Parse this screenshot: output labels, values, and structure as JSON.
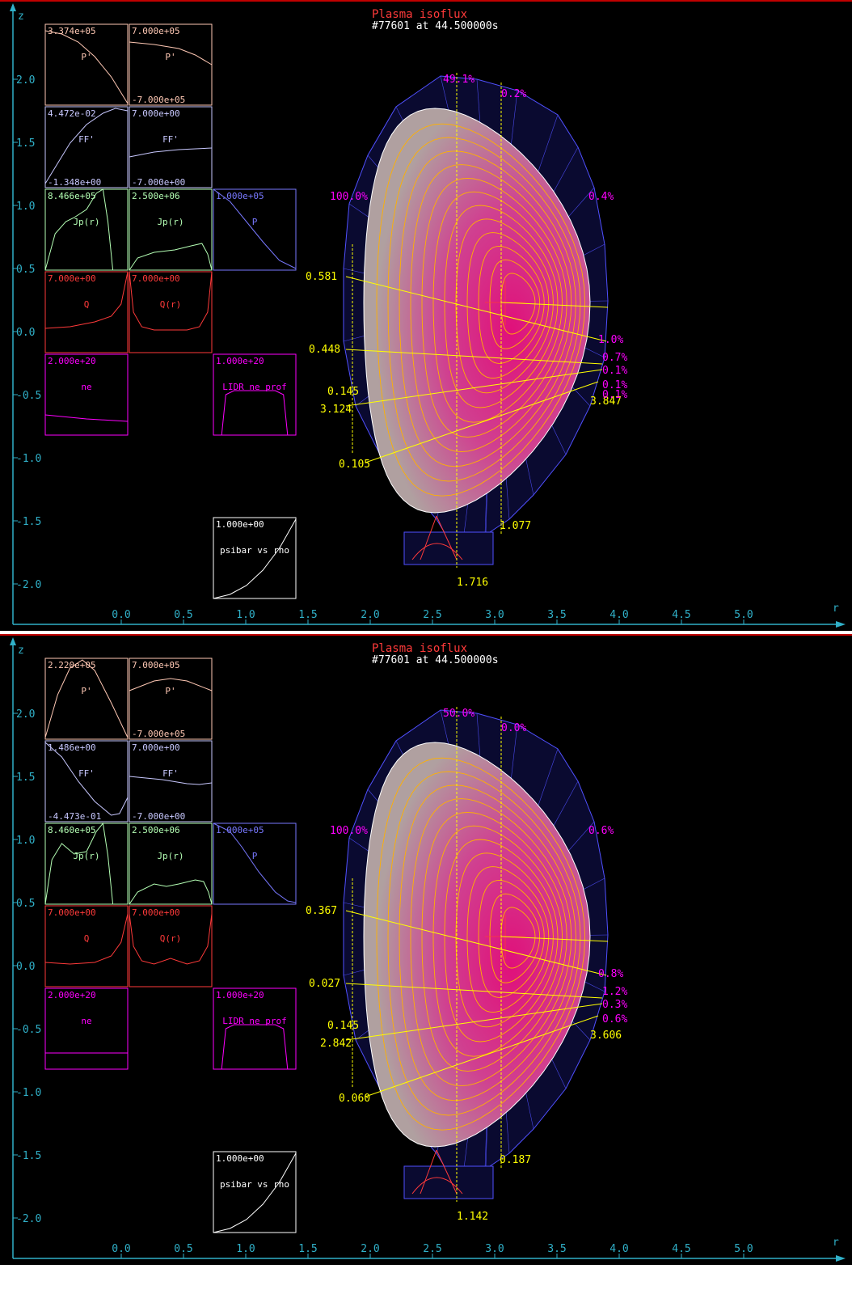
{
  "colors": {
    "axis": "#30b0c8",
    "title": "#ff3a3a",
    "annot": "#ffff00",
    "pct": "#ff00ff",
    "mesh": "#5050ff",
    "plasma_edge": "#b0a0a0",
    "plasma_core": "#e0107a",
    "flux": "#ffb000",
    "p_prime": "#ffc8b4",
    "ffp": "#c8c8ff",
    "jp": "#b4ffb4",
    "p": "#7878ff",
    "q": "#ff3a3a",
    "ne": "#ff00ff",
    "psi": "#ffffff"
  },
  "chart_data": [
    {
      "type": "line",
      "title": "Plasma isoflux",
      "subtitle": "#77601 at 44.500000s",
      "xlabel": "r",
      "ylabel": "z",
      "x_ticks": [
        "0.0",
        "0.5",
        "1.0",
        "1.5",
        "2.0",
        "2.5",
        "3.0",
        "3.5",
        "4.0",
        "4.5",
        "5.0"
      ],
      "y_ticks": [
        "2.0",
        "1.5",
        "1.0",
        "0.5",
        "0.0",
        "-0.5",
        "-1.0",
        "-1.5",
        "-2.0"
      ],
      "xlim": [
        -0.75,
        5.6
      ],
      "ylim": [
        -2.3,
        2.4
      ],
      "los_left": [
        "0.581",
        "0.448",
        "0.145",
        "3.124",
        "0.105"
      ],
      "los_right": [
        "3.847"
      ],
      "los_bottom": [
        "1.077",
        "1.716"
      ],
      "pct_labels": [
        "49.1%",
        "0.2%",
        "100.0%",
        "0.4%",
        "1.0%",
        "0.7%",
        "0.1%",
        "0.1%",
        "0.1%"
      ],
      "insets": [
        {
          "name": "P'",
          "max": "3.374e+05",
          "min": "",
          "color_key": "p_prime",
          "curve": [
            [
              0,
              0.92
            ],
            [
              0.2,
              0.88
            ],
            [
              0.4,
              0.78
            ],
            [
              0.6,
              0.6
            ],
            [
              0.8,
              0.35
            ],
            [
              1,
              0.02
            ]
          ]
        },
        {
          "name": "P'",
          "max": "7.000e+05",
          "min": "-7.000e+05",
          "color_key": "p_prime",
          "curve": [
            [
              0,
              0.78
            ],
            [
              0.3,
              0.75
            ],
            [
              0.6,
              0.7
            ],
            [
              0.8,
              0.62
            ],
            [
              1,
              0.5
            ]
          ]
        },
        {
          "name": "FF'",
          "max": "4.472e-02",
          "min": "-1.348e+00",
          "color_key": "ffp",
          "curve": [
            [
              0,
              0.05
            ],
            [
              0.15,
              0.3
            ],
            [
              0.3,
              0.55
            ],
            [
              0.5,
              0.78
            ],
            [
              0.7,
              0.92
            ],
            [
              0.85,
              0.98
            ],
            [
              1,
              0.95
            ]
          ]
        },
        {
          "name": "FF'",
          "max": "7.000e+00",
          "min": "-7.000e+00",
          "color_key": "ffp",
          "curve": [
            [
              0,
              0.38
            ],
            [
              0.3,
              0.44
            ],
            [
              0.6,
              0.47
            ],
            [
              1,
              0.49
            ]
          ]
        },
        {
          "name": "Jp(r)",
          "max": "8.466e+05",
          "min": "",
          "color_key": "jp",
          "curve": [
            [
              0,
              0
            ],
            [
              0.12,
              0.45
            ],
            [
              0.25,
              0.6
            ],
            [
              0.35,
              0.65
            ],
            [
              0.5,
              0.75
            ],
            [
              0.62,
              0.95
            ],
            [
              0.7,
              1
            ],
            [
              0.76,
              0.6
            ],
            [
              0.82,
              0
            ],
            [
              1,
              0
            ]
          ]
        },
        {
          "name": "Jp(r)",
          "max": "2.500e+06",
          "min": "",
          "color_key": "jp",
          "curve": [
            [
              0,
              0
            ],
            [
              0.1,
              0.15
            ],
            [
              0.3,
              0.22
            ],
            [
              0.55,
              0.25
            ],
            [
              0.75,
              0.3
            ],
            [
              0.88,
              0.33
            ],
            [
              0.95,
              0.2
            ],
            [
              1,
              0
            ]
          ]
        },
        {
          "name": "P",
          "max": "1.000e+05",
          "min": "",
          "color_key": "p",
          "curve": [
            [
              0,
              1
            ],
            [
              0.2,
              0.85
            ],
            [
              0.4,
              0.6
            ],
            [
              0.6,
              0.35
            ],
            [
              0.8,
              0.12
            ],
            [
              1,
              0.02
            ]
          ]
        },
        {
          "name": "Q",
          "max": "7.000e+00",
          "min": "",
          "color_key": "q",
          "curve": [
            [
              0,
              0.3
            ],
            [
              0.3,
              0.32
            ],
            [
              0.6,
              0.38
            ],
            [
              0.8,
              0.45
            ],
            [
              0.92,
              0.6
            ],
            [
              1,
              1
            ]
          ]
        },
        {
          "name": "Q(r)",
          "max": "7.000e+00",
          "min": "",
          "color_key": "q",
          "curve": [
            [
              0,
              1
            ],
            [
              0.05,
              0.5
            ],
            [
              0.15,
              0.32
            ],
            [
              0.3,
              0.28
            ],
            [
              0.7,
              0.28
            ],
            [
              0.85,
              0.32
            ],
            [
              0.95,
              0.5
            ],
            [
              1,
              1
            ]
          ]
        },
        {
          "name": "ne",
          "max": "2.000e+20",
          "min": "",
          "color_key": "ne",
          "curve": [
            [
              0,
              0.25
            ],
            [
              0.5,
              0.2
            ],
            [
              1,
              0.17
            ]
          ]
        },
        {
          "name": "LIDR ne prof",
          "max": "1.000e+20",
          "min": "",
          "color_key": "ne",
          "curve": [
            [
              0.1,
              0
            ],
            [
              0.15,
              0.5
            ],
            [
              0.25,
              0.55
            ],
            [
              0.75,
              0.55
            ],
            [
              0.85,
              0.5
            ],
            [
              0.9,
              0
            ]
          ]
        },
        {
          "name": "psibar vs rho",
          "max": "1.000e+00",
          "min": "",
          "color_key": "psi",
          "curve": [
            [
              0,
              0
            ],
            [
              0.2,
              0.05
            ],
            [
              0.4,
              0.16
            ],
            [
              0.6,
              0.35
            ],
            [
              0.8,
              0.62
            ],
            [
              1,
              0.98
            ]
          ]
        }
      ]
    },
    {
      "type": "line",
      "title": "Plasma isoflux",
      "subtitle": "#77601 at 44.500000s",
      "xlabel": "r",
      "ylabel": "z",
      "x_ticks": [
        "0.0",
        "0.5",
        "1.0",
        "1.5",
        "2.0",
        "2.5",
        "3.0",
        "3.5",
        "4.0",
        "4.5",
        "5.0"
      ],
      "y_ticks": [
        "2.0",
        "1.5",
        "1.0",
        "0.5",
        "0.0",
        "-0.5",
        "-1.0",
        "-1.5",
        "-2.0"
      ],
      "xlim": [
        -0.75,
        5.6
      ],
      "ylim": [
        -2.3,
        2.4
      ],
      "los_left": [
        "0.367",
        "0.027",
        "0.145",
        "2.842",
        "0.060"
      ],
      "los_right": [
        "3.606"
      ],
      "los_bottom": [
        "0.187",
        "1.142"
      ],
      "pct_labels": [
        "50.0%",
        "0.0%",
        "100.0%",
        "0.6%",
        "0.8%",
        "1.2%",
        "0.3%",
        "0.6%",
        ""
      ],
      "insets": [
        {
          "name": "P'",
          "max": "2.220e+05",
          "min": "",
          "color_key": "p_prime",
          "curve": [
            [
              0,
              0.02
            ],
            [
              0.15,
              0.55
            ],
            [
              0.3,
              0.88
            ],
            [
              0.45,
              0.98
            ],
            [
              0.6,
              0.85
            ],
            [
              0.8,
              0.45
            ],
            [
              1,
              0.02
            ]
          ]
        },
        {
          "name": "P'",
          "max": "7.000e+05",
          "min": "-7.000e+05",
          "color_key": "p_prime",
          "curve": [
            [
              0,
              0.6
            ],
            [
              0.3,
              0.72
            ],
            [
              0.5,
              0.75
            ],
            [
              0.7,
              0.72
            ],
            [
              1,
              0.6
            ]
          ]
        },
        {
          "name": "FF'",
          "max": "1.486e+00",
          "min": "-4.473e-01",
          "color_key": "ffp",
          "curve": [
            [
              0,
              0.98
            ],
            [
              0.2,
              0.8
            ],
            [
              0.4,
              0.5
            ],
            [
              0.6,
              0.25
            ],
            [
              0.8,
              0.08
            ],
            [
              0.9,
              0.1
            ],
            [
              1,
              0.3
            ]
          ]
        },
        {
          "name": "FF'",
          "max": "7.000e+00",
          "min": "-7.000e+00",
          "color_key": "ffp",
          "curve": [
            [
              0,
              0.56
            ],
            [
              0.4,
              0.52
            ],
            [
              0.7,
              0.47
            ],
            [
              0.85,
              0.46
            ],
            [
              1,
              0.48
            ]
          ]
        },
        {
          "name": "Jp(r)",
          "max": "8.460e+05",
          "min": "",
          "color_key": "jp",
          "curve": [
            [
              0,
              0
            ],
            [
              0.08,
              0.55
            ],
            [
              0.2,
              0.75
            ],
            [
              0.35,
              0.62
            ],
            [
              0.5,
              0.65
            ],
            [
              0.62,
              0.9
            ],
            [
              0.7,
              1
            ],
            [
              0.76,
              0.6
            ],
            [
              0.82,
              0
            ],
            [
              1,
              0
            ]
          ]
        },
        {
          "name": "Jp(r)",
          "max": "2.500e+06",
          "min": "",
          "color_key": "jp",
          "curve": [
            [
              0,
              0
            ],
            [
              0.1,
              0.15
            ],
            [
              0.3,
              0.25
            ],
            [
              0.45,
              0.22
            ],
            [
              0.6,
              0.25
            ],
            [
              0.8,
              0.3
            ],
            [
              0.9,
              0.28
            ],
            [
              0.96,
              0.15
            ],
            [
              1,
              0
            ]
          ]
        },
        {
          "name": "P",
          "max": "1.000e+05",
          "min": "",
          "color_key": "p",
          "curve": [
            [
              0,
              1
            ],
            [
              0.2,
              0.9
            ],
            [
              0.35,
              0.7
            ],
            [
              0.55,
              0.4
            ],
            [
              0.75,
              0.15
            ],
            [
              0.9,
              0.04
            ],
            [
              1,
              0.02
            ]
          ]
        },
        {
          "name": "Q",
          "max": "7.000e+00",
          "min": "",
          "color_key": "q",
          "curve": [
            [
              0,
              0.3
            ],
            [
              0.3,
              0.28
            ],
            [
              0.6,
              0.3
            ],
            [
              0.8,
              0.38
            ],
            [
              0.92,
              0.55
            ],
            [
              1,
              0.9
            ]
          ]
        },
        {
          "name": "Q(r)",
          "max": "7.000e+00",
          "min": "",
          "color_key": "q",
          "curve": [
            [
              0,
              0.9
            ],
            [
              0.05,
              0.5
            ],
            [
              0.15,
              0.32
            ],
            [
              0.3,
              0.28
            ],
            [
              0.5,
              0.35
            ],
            [
              0.7,
              0.28
            ],
            [
              0.85,
              0.32
            ],
            [
              0.95,
              0.5
            ],
            [
              1,
              0.9
            ]
          ]
        },
        {
          "name": "ne",
          "max": "2.000e+20",
          "min": "",
          "color_key": "ne",
          "curve": [
            [
              0,
              0.2
            ],
            [
              0.5,
              0.2
            ],
            [
              1,
              0.2
            ]
          ]
        },
        {
          "name": "LIDR ne prof",
          "max": "1.000e+20",
          "min": "",
          "color_key": "ne",
          "curve": [
            [
              0.1,
              0
            ],
            [
              0.15,
              0.5
            ],
            [
              0.25,
              0.55
            ],
            [
              0.75,
              0.55
            ],
            [
              0.85,
              0.5
            ],
            [
              0.9,
              0
            ]
          ]
        },
        {
          "name": "psibar vs rho",
          "max": "1.000e+00",
          "min": "",
          "color_key": "psi",
          "curve": [
            [
              0,
              0
            ],
            [
              0.2,
              0.05
            ],
            [
              0.4,
              0.16
            ],
            [
              0.6,
              0.35
            ],
            [
              0.8,
              0.62
            ],
            [
              1,
              0.98
            ]
          ]
        }
      ]
    }
  ]
}
